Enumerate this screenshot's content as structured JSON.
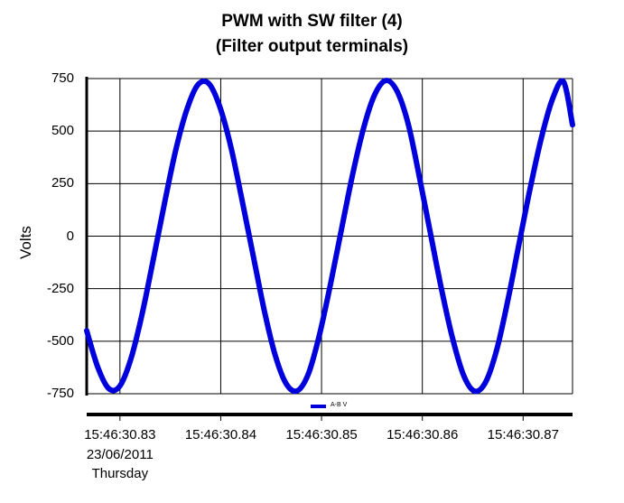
{
  "chart_data": {
    "type": "line",
    "title": "PWM with SW filter (4)",
    "subtitle": "(Filter output terminals)",
    "ylabel": "Volts",
    "xlabel": "",
    "ylim": [
      -750,
      750
    ],
    "y_ticks": [
      "750",
      "500",
      "250",
      "0",
      "-250",
      "-500",
      "-750"
    ],
    "xlim": [
      30.8267,
      30.8749
    ],
    "x_ticks": [
      {
        "value": 30.83,
        "label": "15:46:30.83",
        "sub1": "23/06/2011",
        "sub2": "Thursday"
      },
      {
        "value": 30.84,
        "label": "15:46:30.84"
      },
      {
        "value": 30.85,
        "label": "15:46:30.85"
      },
      {
        "value": 30.86,
        "label": "15:46:30.86"
      },
      {
        "value": 30.87,
        "label": "15:46:30.87"
      }
    ],
    "grid": true,
    "legend_position": "bottom-center",
    "series": [
      {
        "name": "A-B V",
        "color": "#0000dd",
        "x": [
          30.8267,
          30.8278,
          30.8289,
          30.83,
          30.8311,
          30.8322,
          30.8333,
          30.8344,
          30.8355,
          30.8366,
          30.8377,
          30.8388,
          30.8399,
          30.841,
          30.8421,
          30.8432,
          30.8443,
          30.8454,
          30.8465,
          30.8476,
          30.8487,
          30.8498,
          30.8509,
          30.852,
          30.8531,
          30.8542,
          30.8553,
          30.8564,
          30.8575,
          30.8586,
          30.8597,
          30.8608,
          30.8619,
          30.863,
          30.8641,
          30.8652,
          30.8663,
          30.8674,
          30.8685,
          30.8696,
          30.8707,
          30.8718,
          30.8729,
          30.874,
          30.8749
        ],
        "y": [
          -450,
          -624,
          -726,
          -713,
          -582,
          -370,
          -112,
          151,
          402,
          597,
          719,
          727,
          617,
          426,
          174,
          -89,
          -349,
          -566,
          -703,
          -736,
          -654,
          -469,
          -226,
          38,
          298,
          520,
          676,
          741,
          689,
          533,
          284,
          15,
          -252,
          -487,
          -663,
          -738,
          -693,
          -537,
          -301,
          -36,
          228,
          466,
          651,
          735,
          530
        ],
        "overrides_comment": ""
      }
    ]
  }
}
